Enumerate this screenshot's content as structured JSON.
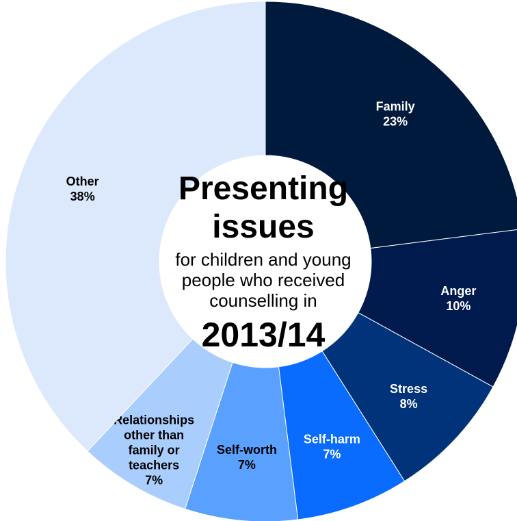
{
  "chart_data": {
    "type": "pie",
    "title_lines": [
      "Presenting",
      "issues"
    ],
    "subtitle": "for children and young people who received counselling in",
    "year": "2013/14",
    "slices": [
      {
        "label_lines": [
          "Family",
          "23%"
        ],
        "value": 23,
        "color": "#001a3d",
        "text_color": "#ffffff"
      },
      {
        "label_lines": [
          "Anger",
          "10%"
        ],
        "value": 10,
        "color": "#001a4d",
        "text_color": "#ffffff"
      },
      {
        "label_lines": [
          "Stress",
          "8%"
        ],
        "value": 8,
        "color": "#00337a",
        "text_color": "#ffffff"
      },
      {
        "label_lines": [
          "Self-harm",
          "7%"
        ],
        "value": 7,
        "color": "#0a6bff",
        "text_color": "#ffffff"
      },
      {
        "label_lines": [
          "Self-worth",
          "7%"
        ],
        "value": 7,
        "color": "#5aa0ff",
        "text_color": "#000000"
      },
      {
        "label_lines": [
          "Relationships",
          "other than",
          "family or",
          "teachers",
          "7%"
        ],
        "value": 7,
        "color": "#a9cdfd",
        "text_color": "#000000"
      },
      {
        "label_lines": [
          "Other",
          "38%"
        ],
        "value": 38,
        "color": "#dce9fc",
        "text_color": "#000000"
      }
    ]
  }
}
